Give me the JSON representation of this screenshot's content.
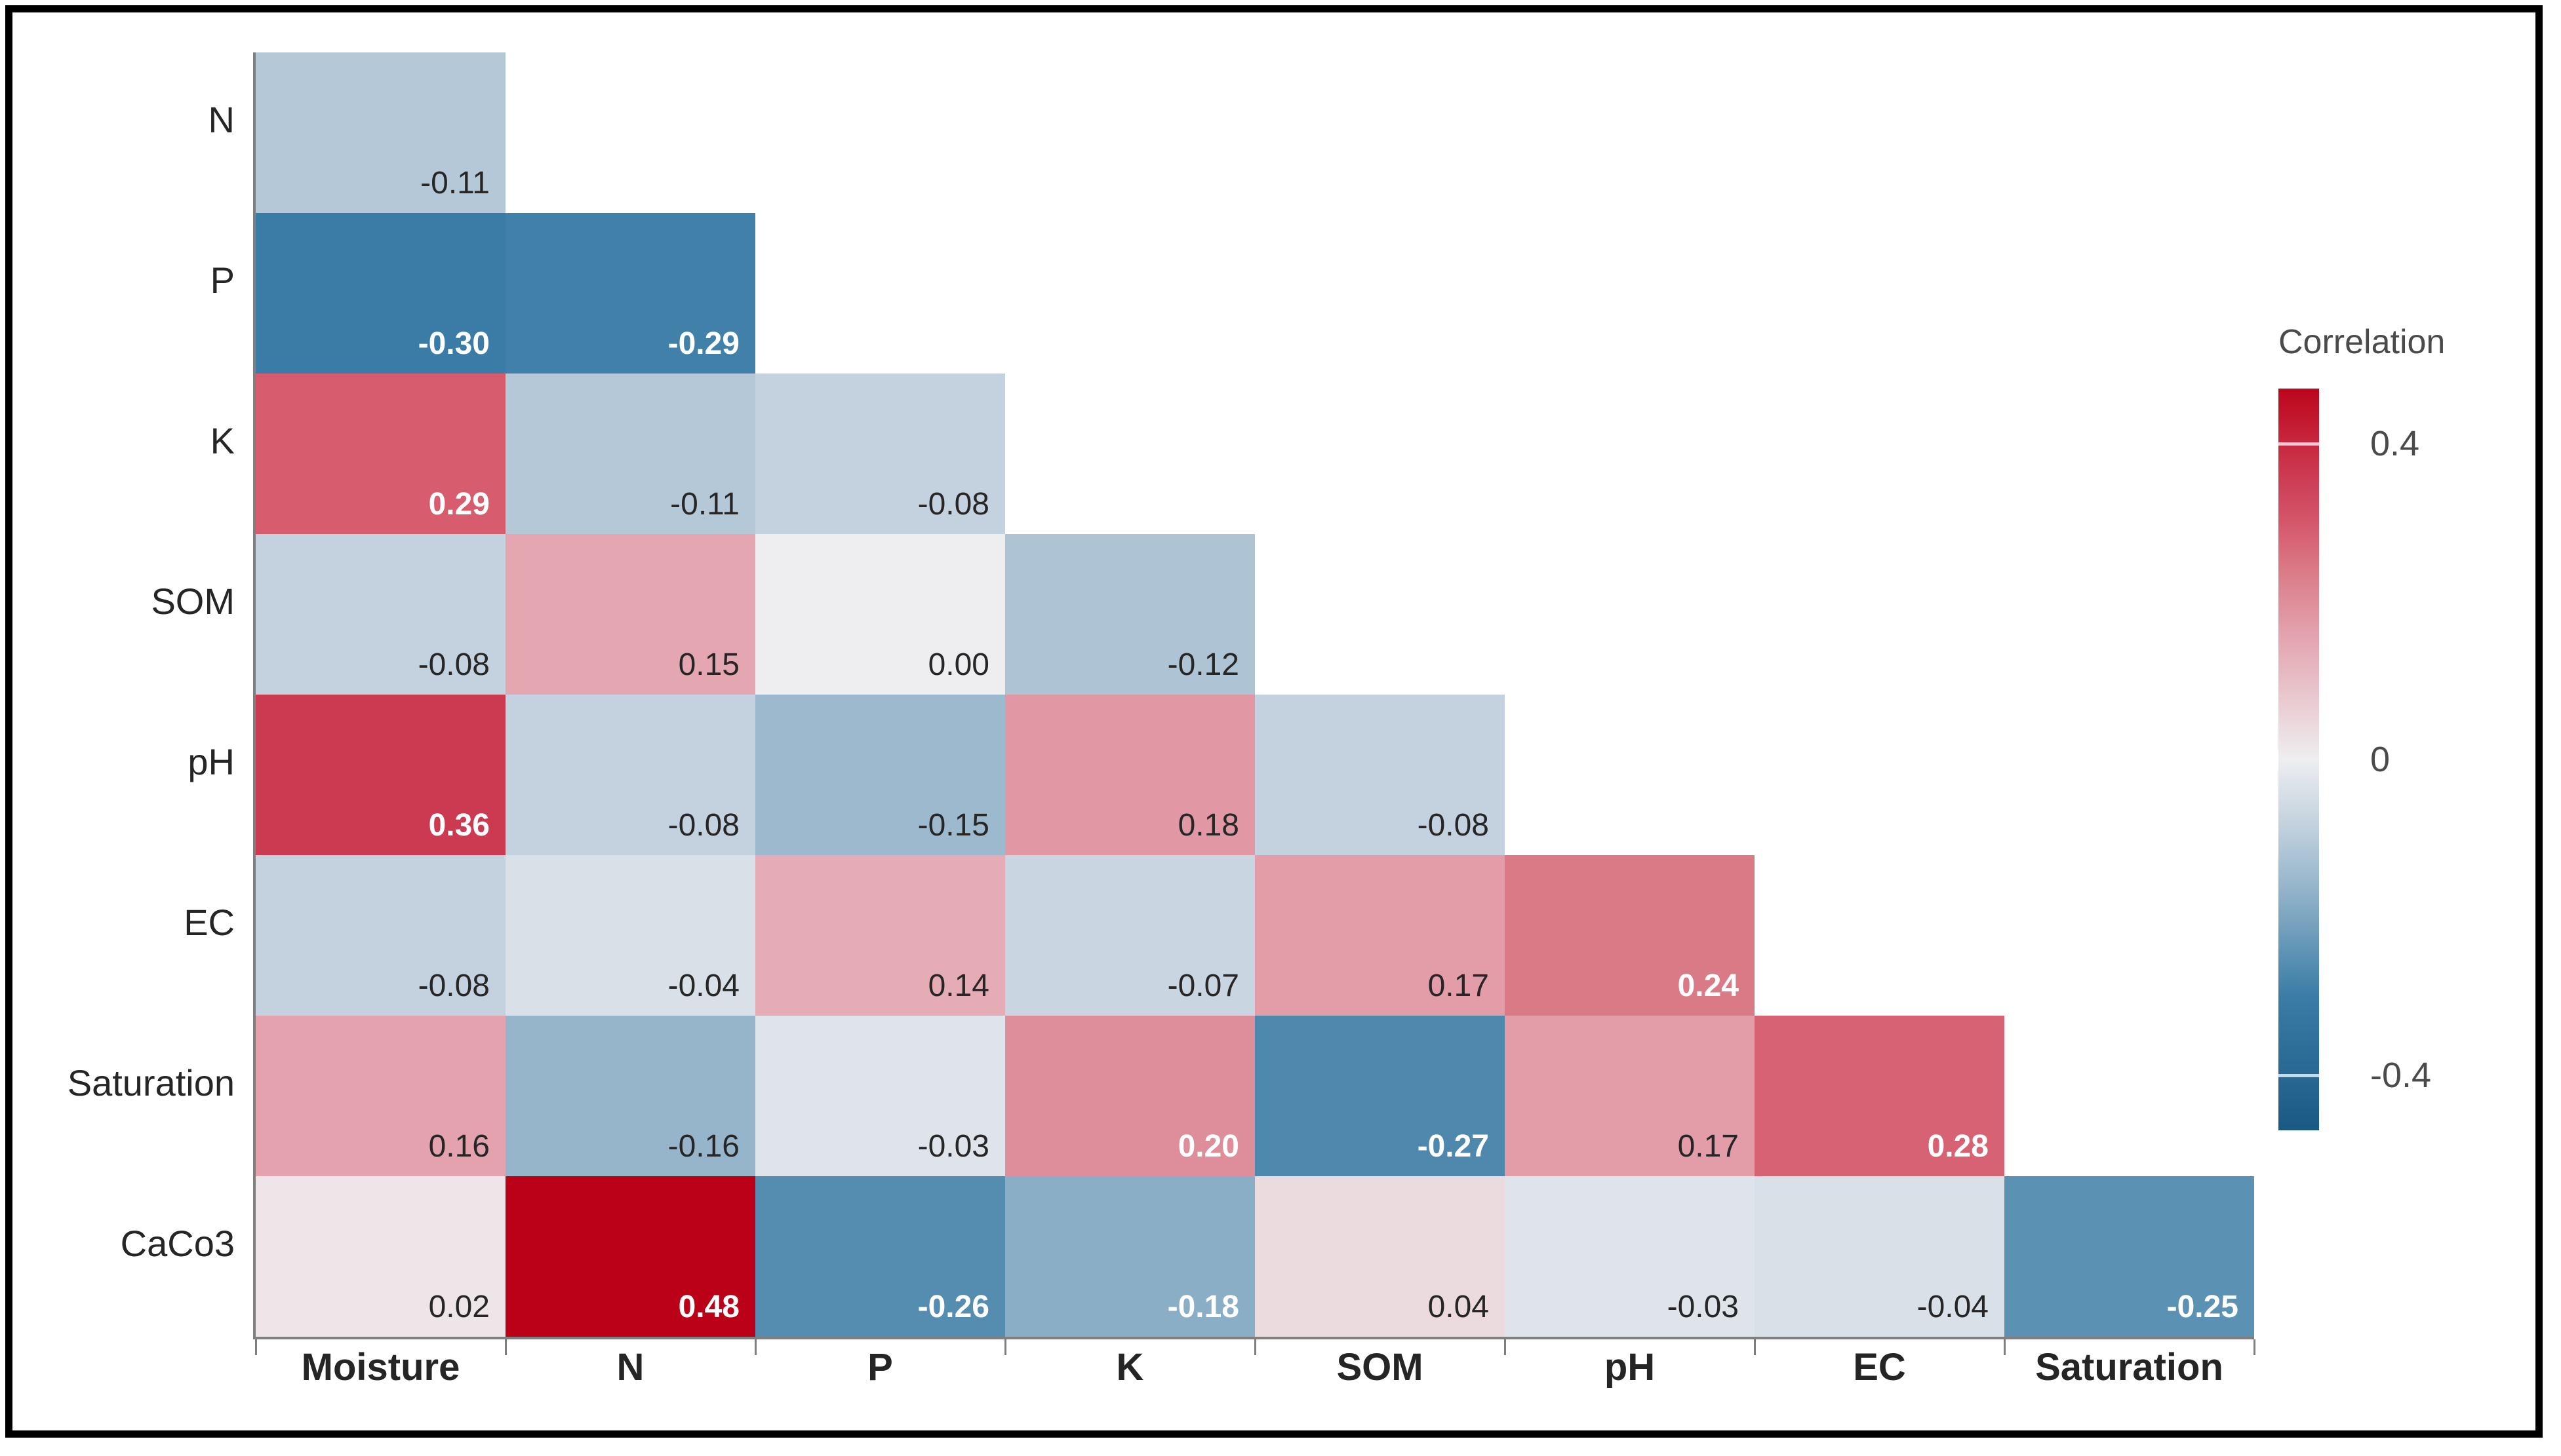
{
  "frame": {
    "border_color": "#000000",
    "background": "#FFFFFF"
  },
  "chart_data": {
    "type": "heatmap",
    "shape": "lower-triangle",
    "x_categories": [
      "Moisture",
      "N",
      "P",
      "K",
      "SOM",
      "pH",
      "EC",
      "Saturation"
    ],
    "y_categories": [
      "N",
      "P",
      "K",
      "SOM",
      "pH",
      "EC",
      "Saturation",
      "CaCo3"
    ],
    "values": [
      [
        -0.11
      ],
      [
        -0.3,
        -0.29
      ],
      [
        0.29,
        -0.11,
        -0.08
      ],
      [
        -0.08,
        0.15,
        0.0,
        -0.12
      ],
      [
        0.36,
        -0.08,
        -0.15,
        0.18,
        -0.08
      ],
      [
        -0.08,
        -0.04,
        0.14,
        -0.07,
        0.17,
        0.24
      ],
      [
        0.16,
        -0.16,
        -0.03,
        0.2,
        -0.27,
        0.17,
        0.28
      ],
      [
        0.02,
        0.48,
        -0.26,
        -0.18,
        0.04,
        -0.03,
        -0.04,
        -0.25
      ]
    ],
    "value_decimals": 2,
    "legend": {
      "title": "Correlation",
      "ticks": [
        0.4,
        0,
        -0.4
      ],
      "domain_min": -0.47,
      "domain_max": 0.47,
      "position": "right"
    },
    "palette_anchors": [
      [
        -0.5,
        "#15537F"
      ],
      [
        -0.3,
        "#3A7CA5"
      ],
      [
        -0.18,
        "#8AAEC6"
      ],
      [
        -0.11,
        "#B4C8D8"
      ],
      [
        0.0,
        "#EEEEF0"
      ],
      [
        0.15,
        "#E4A7B2"
      ],
      [
        0.24,
        "#DA7A87"
      ],
      [
        0.29,
        "#D65C6E"
      ],
      [
        0.36,
        "#CC3A52"
      ],
      [
        0.48,
        "#BB0117"
      ],
      [
        0.5,
        "#B30020"
      ]
    ],
    "axis_color": "#7F7F7F",
    "text_dark": "#262626",
    "text_light": "#FFFFFF"
  }
}
